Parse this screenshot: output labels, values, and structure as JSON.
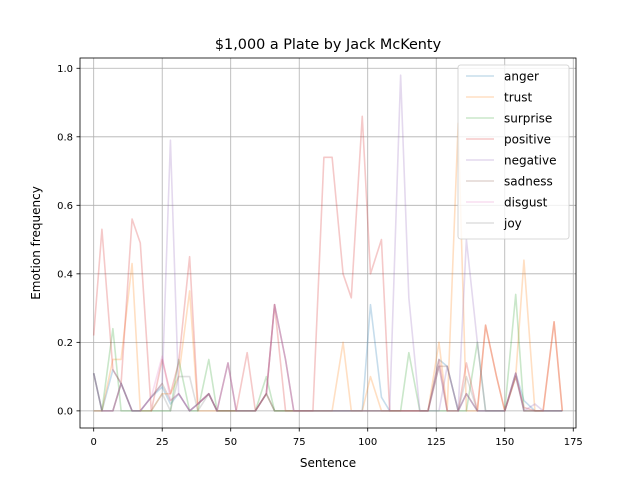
{
  "chart_data": {
    "type": "line",
    "title": "$1,000 a Plate by Jack McKenty",
    "xlabel": "Sentence",
    "ylabel": "Emotion frequency",
    "xlim": [
      -5,
      176
    ],
    "ylim": [
      -0.05,
      1.03
    ],
    "xticks": [
      0,
      25,
      50,
      75,
      100,
      125,
      150,
      175
    ],
    "yticks": [
      0.0,
      0.2,
      0.4,
      0.6,
      0.8,
      1.0
    ],
    "xtick_labels": [
      "0",
      "25",
      "50",
      "75",
      "100",
      "125",
      "150",
      "175"
    ],
    "ytick_labels": [
      "0.0",
      "0.2",
      "0.4",
      "0.6",
      "0.8",
      "1.0"
    ],
    "grid": true,
    "legend_position": "top-right",
    "series": [
      {
        "name": "anger",
        "color": "#1f77b4",
        "x": [
          0,
          3,
          7,
          10,
          14,
          17,
          21,
          25,
          28,
          31,
          35,
          38,
          42,
          45,
          49,
          52,
          56,
          59,
          63,
          66,
          70,
          73,
          77,
          80,
          84,
          87,
          91,
          94,
          98,
          101,
          105,
          108,
          112,
          115,
          119,
          122,
          126,
          129,
          133,
          136,
          140,
          143,
          147,
          150,
          154,
          157,
          161,
          164,
          168,
          171
        ],
        "y": [
          0.11,
          0,
          0.12,
          0.08,
          0,
          0,
          0.04,
          0.07,
          0.02,
          0.05,
          0,
          0.02,
          0.05,
          0,
          0,
          0,
          0,
          0,
          0.05,
          0,
          0,
          0,
          0,
          0,
          0,
          0,
          0,
          0,
          0,
          0.31,
          0.04,
          0,
          0,
          0,
          0,
          0,
          0.15,
          0.13,
          0,
          0.05,
          0,
          0,
          0,
          0,
          0.11,
          0.03,
          0,
          0,
          0,
          0
        ]
      },
      {
        "name": "trust",
        "color": "#ff7f0e",
        "x": [
          0,
          3,
          7,
          10,
          14,
          17,
          21,
          25,
          28,
          31,
          35,
          38,
          42,
          45,
          49,
          52,
          56,
          59,
          63,
          66,
          70,
          73,
          77,
          80,
          84,
          87,
          91,
          94,
          98,
          101,
          105,
          108,
          112,
          115,
          119,
          122,
          126,
          129,
          133,
          136,
          140,
          143,
          147,
          150,
          154,
          157,
          161,
          164,
          168,
          171
        ],
        "y": [
          0,
          0,
          0.15,
          0.15,
          0.43,
          0,
          0,
          0.05,
          0.05,
          0.1,
          0.35,
          0,
          0,
          0,
          0,
          0,
          0,
          0,
          0.05,
          0,
          0,
          0,
          0,
          0,
          0,
          0,
          0.2,
          0,
          0,
          0.1,
          0,
          0,
          0,
          0,
          0,
          0,
          0.2,
          0,
          0.84,
          0,
          0,
          0.25,
          0.1,
          0,
          0.1,
          0.44,
          0,
          0,
          0.26,
          0
        ]
      },
      {
        "name": "surprise",
        "color": "#2ca02c",
        "x": [
          0,
          3,
          7,
          10,
          14,
          17,
          21,
          25,
          28,
          31,
          35,
          38,
          42,
          45,
          49,
          52,
          56,
          59,
          63,
          66,
          70,
          73,
          77,
          80,
          84,
          87,
          91,
          94,
          98,
          101,
          105,
          108,
          112,
          115,
          119,
          122,
          126,
          129,
          133,
          136,
          140,
          143,
          147,
          150,
          154,
          157,
          161,
          164,
          168,
          171
        ],
        "y": [
          0,
          0,
          0.24,
          0,
          0,
          0,
          0,
          0,
          0,
          0.15,
          0,
          0,
          0.15,
          0,
          0,
          0,
          0,
          0,
          0.1,
          0,
          0,
          0,
          0,
          0,
          0,
          0,
          0,
          0,
          0,
          0,
          0,
          0,
          0,
          0.17,
          0,
          0,
          0,
          0,
          0,
          0,
          0.2,
          0,
          0,
          0,
          0.34,
          0,
          0,
          0,
          0,
          0
        ]
      },
      {
        "name": "positive",
        "color": "#d62728",
        "x": [
          0,
          3,
          7,
          10,
          14,
          17,
          21,
          25,
          28,
          31,
          35,
          38,
          42,
          45,
          49,
          52,
          56,
          59,
          63,
          66,
          70,
          73,
          77,
          80,
          84,
          87,
          91,
          94,
          98,
          101,
          105,
          108,
          112,
          115,
          119,
          122,
          126,
          129,
          133,
          136,
          140,
          143,
          147,
          150,
          154,
          157,
          161,
          164,
          168,
          171
        ],
        "y": [
          0.22,
          0.53,
          0.12,
          0.08,
          0.56,
          0.49,
          0,
          0.15,
          0.05,
          0.14,
          0.45,
          0.02,
          0.05,
          0,
          0,
          0,
          0.17,
          0,
          0.05,
          0.31,
          0,
          0,
          0,
          0,
          0.74,
          0.74,
          0.4,
          0.33,
          0.86,
          0.4,
          0.5,
          0,
          0,
          0,
          0,
          0,
          0.15,
          0,
          0,
          0.14,
          0,
          0.25,
          0.1,
          0,
          0.1,
          0.01,
          0,
          0,
          0.26,
          0
        ]
      },
      {
        "name": "negative",
        "color": "#9467bd",
        "x": [
          0,
          3,
          7,
          10,
          14,
          17,
          21,
          25,
          28,
          31,
          35,
          38,
          42,
          45,
          49,
          52,
          56,
          59,
          63,
          66,
          70,
          73,
          77,
          80,
          84,
          87,
          91,
          94,
          98,
          101,
          105,
          108,
          112,
          115,
          119,
          122,
          126,
          129,
          133,
          136,
          140,
          143,
          147,
          150,
          154,
          157,
          161,
          164,
          168,
          171
        ],
        "y": [
          0.11,
          0,
          0,
          0.08,
          0,
          0,
          0.04,
          0.08,
          0.79,
          0.05,
          0,
          0.02,
          0.05,
          0,
          0.14,
          0,
          0,
          0,
          0.05,
          0.31,
          0.15,
          0,
          0,
          0,
          0,
          0,
          0,
          0,
          0,
          0,
          0,
          0,
          0.98,
          0.33,
          0,
          0,
          0,
          0.13,
          0,
          0.5,
          0.2,
          0,
          0,
          0,
          0.11,
          0,
          0.02,
          0,
          0,
          0
        ]
      },
      {
        "name": "sadness",
        "color": "#8c564b",
        "x": [
          0,
          3,
          7,
          10,
          14,
          17,
          21,
          25,
          28,
          31,
          35,
          38,
          42,
          45,
          49,
          52,
          56,
          59,
          63,
          66,
          70,
          73,
          77,
          80,
          84,
          87,
          91,
          94,
          98,
          101,
          105,
          108,
          112,
          115,
          119,
          122,
          126,
          129,
          133,
          136,
          140,
          143,
          147,
          150,
          154,
          157,
          161,
          164,
          168,
          171
        ],
        "y": [
          0.11,
          0,
          0,
          0.08,
          0,
          0,
          0.04,
          0.08,
          0.03,
          0.05,
          0,
          0.02,
          0.05,
          0,
          0.14,
          0,
          0,
          0,
          0.05,
          0.31,
          0.15,
          0,
          0,
          0,
          0,
          0,
          0,
          0,
          0,
          0,
          0,
          0,
          0,
          0,
          0,
          0,
          0.13,
          0.13,
          0,
          0.05,
          0,
          0,
          0,
          0,
          0.11,
          0,
          0,
          0,
          0,
          0
        ]
      },
      {
        "name": "disgust",
        "color": "#e377c2",
        "x": [
          0,
          3,
          7,
          10,
          14,
          17,
          21,
          25,
          28,
          31,
          35,
          38,
          42,
          45,
          49,
          52,
          56,
          59,
          63,
          66,
          70,
          73,
          77,
          80,
          84,
          87,
          91,
          94,
          98,
          101,
          105,
          108,
          112,
          115,
          119,
          122,
          126,
          129,
          133,
          136,
          140,
          143,
          147,
          150,
          154,
          157,
          161,
          164,
          168,
          171
        ],
        "y": [
          0,
          0,
          0,
          0.08,
          0,
          0,
          0.04,
          0.16,
          0.03,
          0.05,
          0,
          0.02,
          0.05,
          0,
          0.14,
          0,
          0,
          0,
          0.05,
          0.31,
          0.15,
          0,
          0,
          0,
          0,
          0,
          0,
          0,
          0,
          0,
          0,
          0,
          0,
          0,
          0,
          0,
          0.13,
          0,
          0,
          0.05,
          0,
          0,
          0,
          0,
          0.11,
          0,
          0,
          0,
          0,
          0
        ]
      },
      {
        "name": "joy",
        "color": "#7f7f7f",
        "x": [
          0,
          3,
          7,
          10,
          14,
          17,
          21,
          25,
          28,
          31,
          35,
          38,
          42,
          45,
          49,
          52,
          56,
          59,
          63,
          66,
          70,
          73,
          77,
          80,
          84,
          87,
          91,
          94,
          98,
          101,
          105,
          108,
          112,
          115,
          119,
          122,
          126,
          129,
          133,
          136,
          140,
          143,
          147,
          150,
          154,
          157,
          161,
          164,
          168,
          171
        ],
        "y": [
          0.11,
          0,
          0,
          0.08,
          0,
          0,
          0,
          0.05,
          0,
          0.1,
          0.1,
          0,
          0.05,
          0,
          0,
          0,
          0,
          0,
          0.05,
          0,
          0,
          0,
          0,
          0,
          0,
          0,
          0,
          0,
          0,
          0,
          0,
          0,
          0,
          0,
          0,
          0,
          0.13,
          0,
          0,
          0.1,
          0,
          0,
          0,
          0,
          0.1,
          0,
          0,
          0,
          0,
          0
        ]
      }
    ]
  }
}
